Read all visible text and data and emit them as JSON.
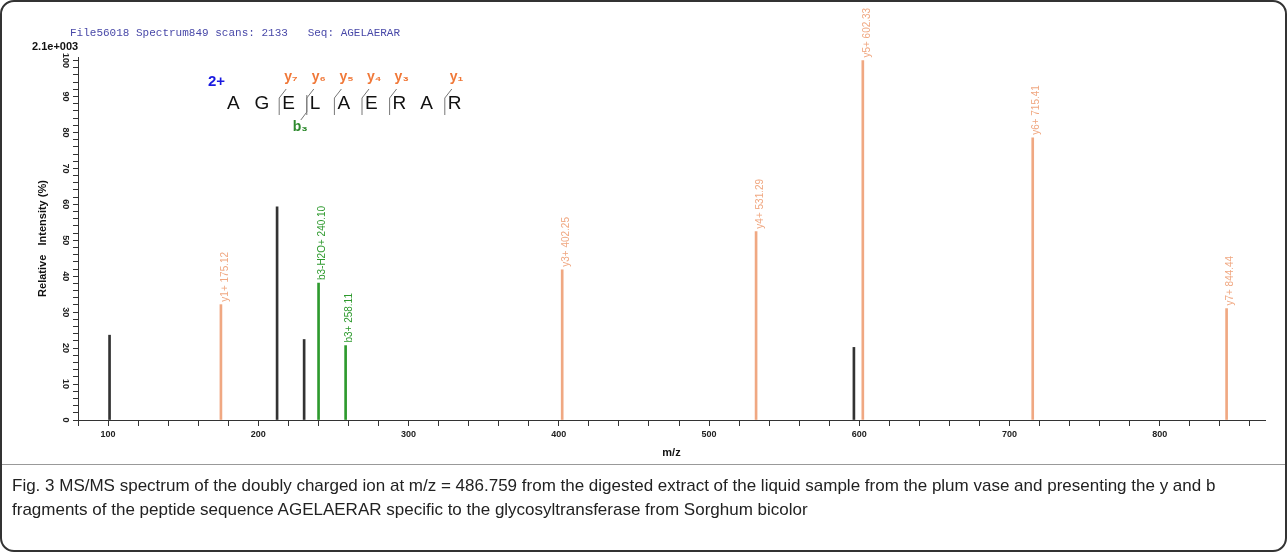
{
  "chart_data": {
    "type": "bar",
    "xlabel": "m/z",
    "ylabel": "Relative   Intensity (%)",
    "xlim": [
      80,
      870
    ],
    "xticks": [
      {
        "value": 80,
        "label": null
      },
      100,
      {
        "value": 120,
        "label": null
      },
      {
        "value": 140,
        "label": null
      },
      {
        "value": 160,
        "label": null
      },
      {
        "value": 180,
        "label": null
      },
      200,
      {
        "value": 220,
        "label": null
      },
      {
        "value": 240,
        "label": null
      },
      {
        "value": 260,
        "label": null
      },
      {
        "value": 280,
        "label": null
      },
      300,
      {
        "value": 320,
        "label": null
      },
      {
        "value": 340,
        "label": null
      },
      {
        "value": 360,
        "label": null
      },
      {
        "value": 380,
        "label": null
      },
      400,
      {
        "value": 420,
        "label": null
      },
      {
        "value": 440,
        "label": null
      },
      {
        "value": 460,
        "label": null
      },
      {
        "value": 480,
        "label": null
      },
      500,
      {
        "value": 520,
        "label": null
      },
      {
        "value": 540,
        "label": null
      },
      {
        "value": 560,
        "label": null
      },
      {
        "value": 580,
        "label": null
      },
      600,
      {
        "value": 620,
        "label": null
      },
      {
        "value": 640,
        "label": null
      },
      {
        "value": 660,
        "label": null
      },
      {
        "value": 680,
        "label": null
      },
      700,
      {
        "value": 720,
        "label": null
      },
      {
        "value": 740,
        "label": null
      },
      {
        "value": 760,
        "label": null
      },
      {
        "value": 780,
        "label": null
      },
      800,
      {
        "value": 820,
        "label": null
      },
      {
        "value": 840,
        "label": null
      },
      {
        "value": 860,
        "label": null
      }
    ],
    "ylim": [
      0,
      101
    ],
    "yticks": [
      0,
      {
        "value": 2,
        "label": null
      },
      {
        "value": 4,
        "label": null
      },
      {
        "value": 6,
        "label": null
      },
      {
        "value": 8,
        "label": null
      },
      10,
      {
        "value": 12,
        "label": null
      },
      {
        "value": 14,
        "label": null
      },
      {
        "value": 16,
        "label": null
      },
      {
        "value": 18,
        "label": null
      },
      20,
      {
        "value": 22,
        "label": null
      },
      {
        "value": 24,
        "label": null
      },
      {
        "value": 26,
        "label": null
      },
      {
        "value": 28,
        "label": null
      },
      30,
      {
        "value": 32,
        "label": null
      },
      {
        "value": 34,
        "label": null
      },
      {
        "value": 36,
        "label": null
      },
      {
        "value": 38,
        "label": null
      },
      40,
      {
        "value": 42,
        "label": null
      },
      {
        "value": 44,
        "label": null
      },
      {
        "value": 46,
        "label": null
      },
      {
        "value": 48,
        "label": null
      },
      50,
      {
        "value": 52,
        "label": null
      },
      {
        "value": 54,
        "label": null
      },
      {
        "value": 56,
        "label": null
      },
      {
        "value": 58,
        "label": null
      },
      60,
      {
        "value": 62,
        "label": null
      },
      {
        "value": 64,
        "label": null
      },
      {
        "value": 66,
        "label": null
      },
      {
        "value": 68,
        "label": null
      },
      70,
      {
        "value": 72,
        "label": null
      },
      {
        "value": 74,
        "label": null
      },
      {
        "value": 76,
        "label": null
      },
      {
        "value": 78,
        "label": null
      },
      80,
      {
        "value": 82,
        "label": null
      },
      {
        "value": 84,
        "label": null
      },
      {
        "value": 86,
        "label": null
      },
      {
        "value": 88,
        "label": null
      },
      90,
      {
        "value": 92,
        "label": null
      },
      {
        "value": 94,
        "label": null
      },
      {
        "value": 96,
        "label": null
      },
      {
        "value": 98,
        "label": null
      },
      100
    ],
    "series": [
      {
        "color": "#333333",
        "x": [
          101,
          212.5,
          230.5,
          596.4
        ],
        "values": [
          23.6,
          59.3,
          22.4,
          20.2
        ]
      },
      {
        "color": "#f0a882",
        "x": [
          175.12,
          402.25,
          531.29,
          602.33,
          715.41,
          844.44
        ],
        "values": [
          32.1,
          41.8,
          52.4,
          100,
          78.5,
          31.0
        ],
        "value_labels": [
          "y1+ 175.12",
          "y3+ 402.25",
          "y4+ 531.29",
          "y5+ 602.33",
          "y6+ 715.41",
          "y7+ 844.44"
        ]
      },
      {
        "color": "#2e9a2e",
        "x": [
          240.1,
          258.11
        ],
        "values": [
          38.1,
          20.7
        ],
        "value_labels": [
          "b3-H2O+ 240.10",
          "b3+ 258.11"
        ]
      }
    ],
    "legend": false,
    "grid": false,
    "annotations": [
      "File56018 Spectrum849 scans: 2133   Seq: AGELAERAR",
      "2.1e+003",
      "2+",
      "A G E L A E R A R",
      "y₇",
      "y₆",
      "y₅",
      "y₄",
      "y₃",
      "y₁",
      "b₃",
      "Fig. 3  MS/MS spectrum of the doubly charged ion at m/z = 486.759 from the digested extract of the liquid sample from the plum vase and presenting the y and b fragments of the peptide sequence AGELAERAR specific to the glycosyltransferase from Sorghum bicolor"
    ]
  }
}
